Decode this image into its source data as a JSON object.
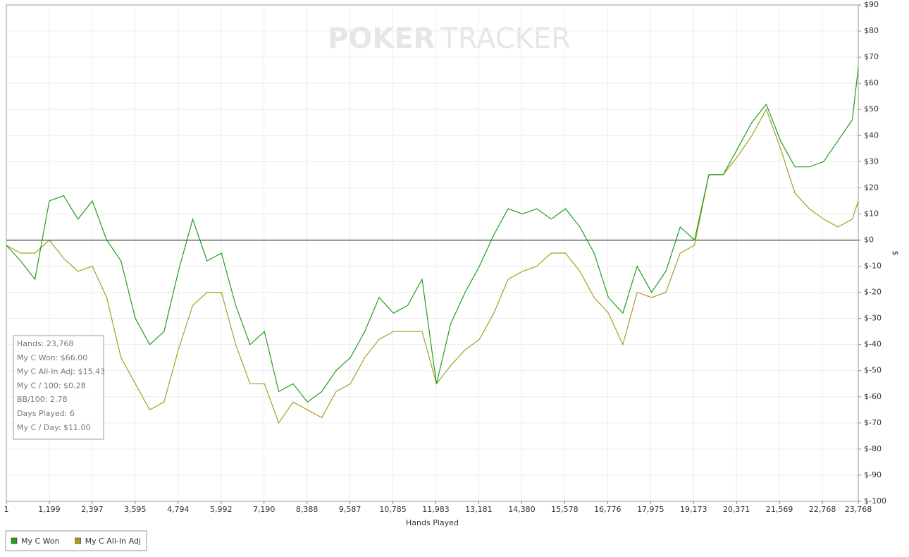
{
  "chart_data": {
    "type": "line",
    "watermark": [
      "POKER",
      "TRACKER"
    ],
    "xlabel": "Hands Played",
    "ylabel": "$",
    "x": [
      1,
      400,
      800,
      1200,
      1600,
      2000,
      2400,
      2800,
      3200,
      3600,
      4000,
      4400,
      4800,
      5200,
      5600,
      6000,
      6400,
      6800,
      7200,
      7600,
      8000,
      8400,
      8800,
      9200,
      9600,
      10000,
      10400,
      10800,
      11200,
      11600,
      12000,
      12400,
      12800,
      13200,
      13600,
      14000,
      14400,
      14800,
      15200,
      15600,
      16000,
      16400,
      16800,
      17200,
      17600,
      18000,
      18400,
      18800,
      19200,
      19600,
      20000,
      20400,
      20800,
      21200,
      21600,
      22000,
      22400,
      22800,
      23200,
      23600,
      23768
    ],
    "series": [
      {
        "name": "My C Won",
        "color": "#1f9e1f",
        "values": [
          -2,
          -8,
          -15,
          15,
          17,
          8,
          15,
          0,
          -8,
          -30,
          -40,
          -35,
          -12,
          8,
          -8,
          -5,
          -25,
          -40,
          -35,
          -58,
          -55,
          -62,
          -58,
          -50,
          -45,
          -35,
          -22,
          -28,
          -25,
          -15,
          -55,
          -32,
          -20,
          -10,
          2,
          12,
          10,
          12,
          8,
          12,
          5,
          -5,
          -22,
          -28,
          -10,
          -20,
          -12,
          5,
          0,
          25,
          25,
          35,
          45,
          52,
          38,
          28,
          28,
          30,
          38,
          46,
          66
        ]
      },
      {
        "name": "My C All-In Adj",
        "color": "#a6a01f",
        "values": [
          -2,
          -5,
          -5,
          0,
          -7,
          -12,
          -10,
          -22,
          -45,
          -55,
          -65,
          -62,
          -42,
          -25,
          -20,
          -20,
          -40,
          -55,
          -55,
          -70,
          -62,
          -65,
          -68,
          -58,
          -55,
          -45,
          -38,
          -35,
          -35,
          -35,
          -55,
          -48,
          -42,
          -38,
          -28,
          -15,
          -12,
          -10,
          -5,
          -5,
          -12,
          -22,
          -28,
          -40,
          -20,
          -22,
          -20,
          -5,
          -2,
          25,
          25,
          32,
          40,
          50,
          35,
          18,
          12,
          8,
          5,
          8,
          15
        ]
      }
    ],
    "xlim": [
      1,
      23768
    ],
    "xticks": [
      1,
      {
        "value": 1199,
        "label": "1,199"
      },
      {
        "value": 2397,
        "label": "2,397"
      },
      {
        "value": 3595,
        "label": "3,595"
      },
      {
        "value": 4794,
        "label": "4,794"
      },
      {
        "value": 5992,
        "label": "5,992"
      },
      {
        "value": 7190,
        "label": "7,190"
      },
      {
        "value": 8388,
        "label": "8,388"
      },
      {
        "value": 9587,
        "label": "9,587"
      },
      {
        "value": 10785,
        "label": "10,785"
      },
      {
        "value": 11983,
        "label": "11,983"
      },
      {
        "value": 13181,
        "label": "13,181"
      },
      {
        "value": 14380,
        "label": "14,380"
      },
      {
        "value": 15578,
        "label": "15,578"
      },
      {
        "value": 16776,
        "label": "16,776"
      },
      {
        "value": 17975,
        "label": "17,975"
      },
      {
        "value": 19173,
        "label": "19,173"
      },
      {
        "value": 20371,
        "label": "20,371"
      },
      {
        "value": 21569,
        "label": "21,569"
      },
      {
        "value": 22768,
        "label": "22,768"
      },
      {
        "value": 23768,
        "label": "23,768"
      }
    ],
    "ylim": [
      -100,
      90
    ],
    "yticks": [
      {
        "value": 90,
        "label": "$90"
      },
      {
        "value": 80,
        "label": "$80"
      },
      {
        "value": 70,
        "label": "$70"
      },
      {
        "value": 60,
        "label": "$60"
      },
      {
        "value": 50,
        "label": "$50"
      },
      {
        "value": 40,
        "label": "$40"
      },
      {
        "value": 30,
        "label": "$30"
      },
      {
        "value": 20,
        "label": "$20"
      },
      {
        "value": 10,
        "label": "$10"
      },
      {
        "value": 0,
        "label": "$0"
      },
      {
        "value": -10,
        "label": "$-10"
      },
      {
        "value": -20,
        "label": "$-20"
      },
      {
        "value": -30,
        "label": "$-30"
      },
      {
        "value": -40,
        "label": "$-40"
      },
      {
        "value": -50,
        "label": "$-50"
      },
      {
        "value": -60,
        "label": "$-60"
      },
      {
        "value": -70,
        "label": "$-70"
      },
      {
        "value": -80,
        "label": "$-80"
      },
      {
        "value": -90,
        "label": "$-90"
      },
      {
        "value": -100,
        "label": "$-100"
      }
    ],
    "y_axis_side": "right",
    "grid": true,
    "legend": "bottom-left",
    "info_box": [
      "Hands: 23,768",
      "My C Won: $66.00",
      "My C All-In Adj: $15.43",
      "My C / 100: $0.28",
      "BB/100: 2.78",
      "Days Played: 6",
      "My C / Day: $11.00"
    ]
  }
}
